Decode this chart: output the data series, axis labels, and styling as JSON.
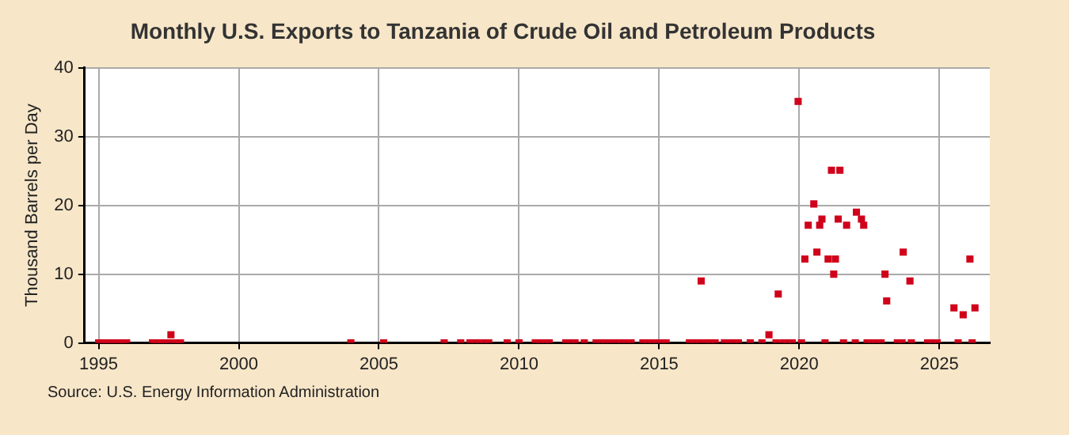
{
  "chart_data": {
    "type": "scatter",
    "title": "Monthly U.S. Exports to Tanzania of Crude Oil and Petroleum Products",
    "ylabel": "Thousand Barrels per Day",
    "annotations": [
      "Source: U.S. Energy Information Administration"
    ],
    "series": [
      {
        "color": "#d0021b",
        "x": [
          1995.0,
          1995.08,
          1995.17,
          1995.25,
          1995.33,
          1995.42,
          1995.5,
          1995.58,
          1995.67,
          1995.75,
          1995.83,
          1995.92,
          1996.0,
          1996.92,
          1997.0,
          1997.08,
          1997.17,
          1997.25,
          1997.33,
          1997.42,
          1997.5,
          1997.58,
          1997.67,
          1997.75,
          1997.83,
          1997.92,
          2004.0,
          2005.17,
          2007.33,
          2007.92,
          2008.25,
          2008.42,
          2008.58,
          2008.75,
          2008.92,
          2009.58,
          2010.0,
          2010.58,
          2010.75,
          2010.92,
          2011.08,
          2011.67,
          2011.83,
          2012.0,
          2012.33,
          2012.75,
          2012.92,
          2013.08,
          2013.25,
          2013.5,
          2013.67,
          2013.83,
          2014.0,
          2014.42,
          2014.58,
          2014.75,
          2014.92,
          2015.08,
          2015.25,
          2016.08,
          2016.25,
          2016.42,
          2016.5,
          2016.67,
          2016.83,
          2017.0,
          2017.33,
          2017.5,
          2017.67,
          2017.83,
          2018.25,
          2018.67,
          2018.92,
          2019.17,
          2019.25,
          2019.42,
          2019.58,
          2019.75,
          2019.96,
          2020.08,
          2020.2,
          2020.32,
          2020.52,
          2020.63,
          2020.73,
          2020.81,
          2020.92,
          2021.03,
          2021.15,
          2021.23,
          2021.29,
          2021.39,
          2021.45,
          2021.58,
          2021.69,
          2022.0,
          2022.04,
          2022.22,
          2022.3,
          2022.42,
          2022.58,
          2022.75,
          2022.92,
          2023.06,
          2023.12,
          2023.5,
          2023.67,
          2023.71,
          2023.95,
          2024.0,
          2024.58,
          2024.75,
          2024.92,
          2025.52,
          2025.67,
          2025.85,
          2026.09,
          2026.17,
          2026.27
        ],
        "values": [
          0,
          0,
          0,
          0,
          0,
          0,
          0,
          0,
          0,
          0,
          0,
          0,
          0,
          0,
          0,
          0,
          0,
          0,
          0,
          0,
          0,
          1.2,
          0,
          0,
          0,
          0,
          0,
          0,
          0,
          0,
          0,
          0,
          0,
          0,
          0,
          0,
          0,
          0,
          0,
          0,
          0,
          0,
          0,
          0,
          0,
          0,
          0,
          0,
          0,
          0,
          0,
          0,
          0,
          0,
          0,
          0,
          0,
          0,
          0,
          0,
          0,
          0,
          9,
          0,
          0,
          0,
          0,
          0,
          0,
          0,
          0,
          0,
          1.2,
          0,
          7.1,
          0,
          0,
          0,
          35.1,
          0,
          12.2,
          17.1,
          20.2,
          13.2,
          17.1,
          18,
          0,
          12.2,
          25.1,
          10,
          12.2,
          18,
          25.1,
          0,
          17.1,
          0,
          19,
          18,
          17.1,
          0,
          0,
          0,
          0,
          10,
          6.1,
          0,
          0,
          13.2,
          9,
          0,
          0,
          0,
          0,
          5.1,
          0,
          4.1,
          12.2,
          0,
          5.1
        ]
      }
    ],
    "xlim": [
      1994.5,
      2026.8
    ],
    "xticks": [
      1995,
      2000,
      2005,
      2010,
      2015,
      2020,
      2025
    ],
    "ylim": [
      0,
      40
    ],
    "yticks": [
      0,
      10,
      20,
      30,
      40
    ],
    "grid": true,
    "marker": "square"
  }
}
